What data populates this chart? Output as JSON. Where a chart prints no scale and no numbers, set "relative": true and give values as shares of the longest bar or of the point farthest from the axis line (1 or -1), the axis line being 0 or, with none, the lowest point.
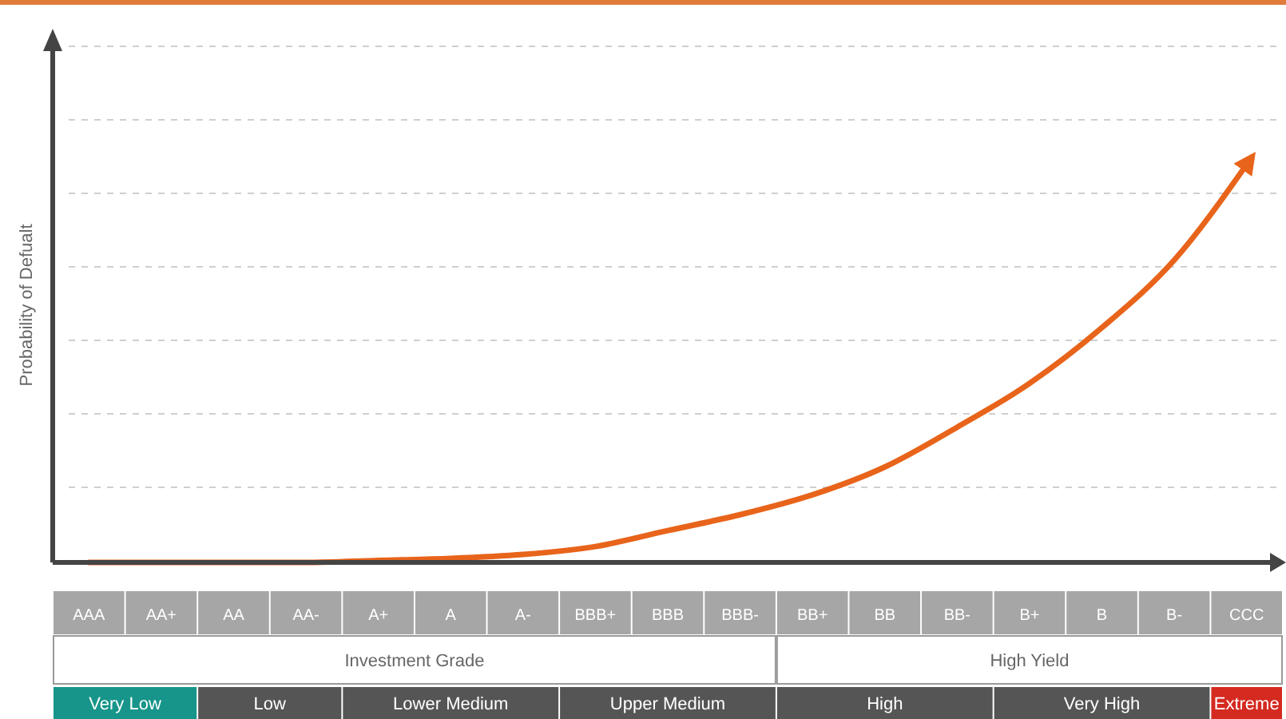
{
  "chart_data": {
    "type": "line",
    "relative": true,
    "ylabel": "Probability of Defualt",
    "categories": [
      "AAA",
      "AA+",
      "AA",
      "AA-",
      "A+",
      "A",
      "A-",
      "BBB+",
      "BBB",
      "BBB-",
      "BB+",
      "BB",
      "BB-",
      "B+",
      "B",
      "B-",
      "CCC"
    ],
    "series": [
      {
        "color": "#e8641b",
        "values": [
          0,
          0,
          0,
          0,
          0.005,
          0.01,
          0.02,
          0.04,
          0.08,
          0.12,
          0.17,
          0.24,
          0.34,
          0.45,
          0.59,
          0.76,
          1
        ]
      }
    ],
    "marker": "none",
    "line_style": "solid",
    "grid": "y",
    "annotations": [
      "Investment Grade",
      "High Yield",
      "Very Low",
      "Low",
      "Lower Medium",
      "Upper Medium",
      "High",
      "Very High",
      "Extreme"
    ]
  }
}
